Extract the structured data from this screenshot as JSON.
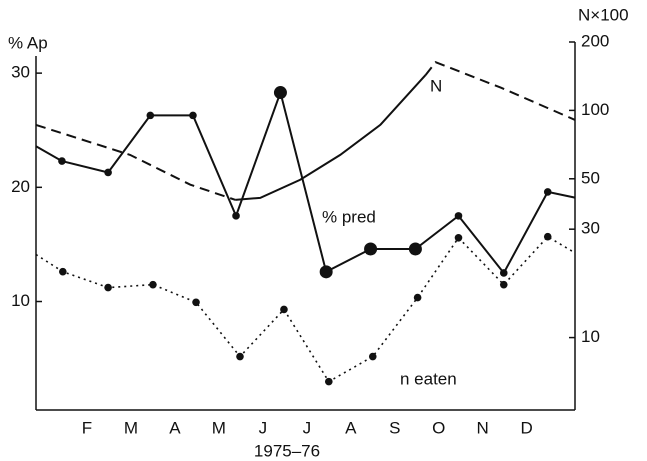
{
  "chart_data": {
    "type": "line",
    "y_label": "% Ap",
    "y2_label": "N×100",
    "x_label": "1975–76",
    "xlim": [
      0.84,
      13.1
    ],
    "xticks": [
      {
        "value": 2,
        "label": "F"
      },
      {
        "value": 3,
        "label": "M"
      },
      {
        "value": 4,
        "label": "A"
      },
      {
        "value": 5,
        "label": "M"
      },
      {
        "value": 6,
        "label": "J"
      },
      {
        "value": 7,
        "label": "J"
      },
      {
        "value": 8,
        "label": "A"
      },
      {
        "value": 9,
        "label": "S"
      },
      {
        "value": 10,
        "label": "O"
      },
      {
        "value": 11,
        "label": "N"
      },
      {
        "value": 12,
        "label": "D"
      }
    ],
    "ylim": [
      0.5,
      31.5
    ],
    "yticks": [
      10,
      20,
      30
    ],
    "y2lim": [
      4.8,
      200
    ],
    "y2ticks": [
      10,
      30,
      50,
      100,
      200
    ],
    "y2_log": true,
    "color": "#111111",
    "series": [
      {
        "name": "% pred",
        "axis": "y",
        "line_style": "solid",
        "x": [
          0.84,
          1.43,
          2.48,
          3.44,
          4.41,
          5.39,
          6.4,
          7.44,
          8.45,
          9.47,
          10.45,
          11.48,
          12.48,
          13.1
        ],
        "values": [
          23.6,
          22.3,
          21.3,
          26.3,
          26.3,
          17.5,
          28.3,
          12.6,
          14.6,
          14.6,
          17.5,
          12.5,
          19.6,
          19.1
        ],
        "markers": [
          "none",
          "small",
          "small",
          "small",
          "small",
          "small",
          "large",
          "large",
          "large",
          "large",
          "small",
          "small",
          "small",
          "none"
        ]
      },
      {
        "name": "n eaten",
        "axis": "y2",
        "line_style": "dotted",
        "x": [
          0.84,
          1.45,
          2.48,
          3.5,
          4.48,
          5.48,
          6.48,
          7.5,
          8.5,
          9.52,
          10.45,
          11.48,
          12.48,
          13.1
        ],
        "values": [
          23.2,
          19.5,
          16.6,
          17.1,
          14.3,
          8.25,
          13.3,
          6.4,
          8.25,
          15.0,
          27.5,
          17.1,
          27.8,
          23.6
        ],
        "markers": [
          "none",
          "small",
          "small",
          "small",
          "small",
          "small",
          "small",
          "small",
          "small",
          "small",
          "small",
          "small",
          "small",
          "none"
        ]
      },
      {
        "name": "N",
        "axis": "y2",
        "line_style": "dashed",
        "x": [
          0.84,
          2.98,
          4.35,
          5.37,
          5.94,
          6.85,
          7.76,
          8.67,
          9.7,
          9.93,
          11.41,
          13.1
        ],
        "values": [
          86.3,
          63.7,
          47.1,
          40.4,
          41.2,
          49.5,
          63.7,
          86.3,
          143,
          163,
          126,
          90.8
        ],
        "segment_styles": [
          "dashed",
          "dashed",
          "dashed",
          "solid",
          "solid",
          "solid",
          "solid",
          "solid",
          "dashed",
          "dashed",
          "dashed"
        ]
      }
    ]
  }
}
